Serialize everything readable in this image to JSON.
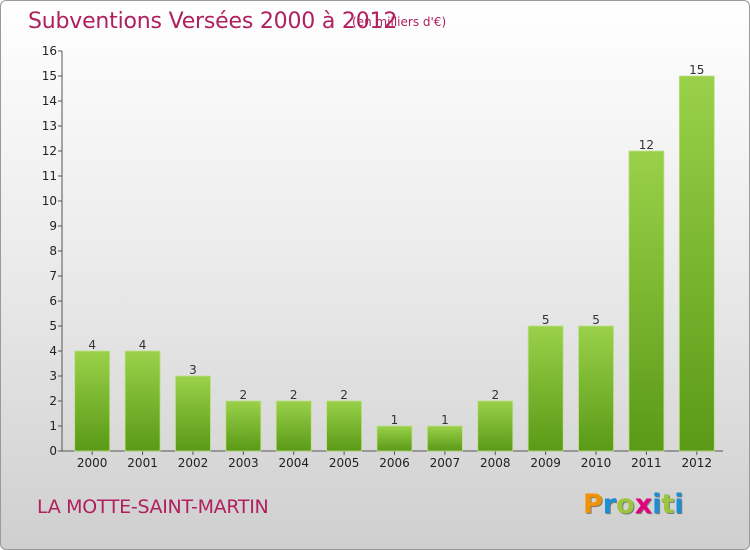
{
  "title": "Subventions Versées 2000 à 2012",
  "subtitle": "(en milliers d'€)",
  "commune": "LA MOTTE-SAINT-MARTIN",
  "brand": {
    "letters": [
      "P",
      "r",
      "o",
      "x",
      "i",
      "t",
      "i"
    ],
    "colors": [
      "#f39200",
      "#1a8fd6",
      "#9bc53d",
      "#e5007d",
      "#1a8fd6",
      "#9bc53d",
      "#1a8fd6"
    ]
  },
  "colors": {
    "title": "#b0205f",
    "bar_top": "#9ad14a",
    "bar_bottom": "#5a9a16"
  },
  "chart_data": {
    "type": "bar",
    "categories": [
      "2000",
      "2001",
      "2002",
      "2003",
      "2004",
      "2005",
      "2006",
      "2007",
      "2008",
      "2009",
      "2010",
      "2011",
      "2012"
    ],
    "values": [
      4,
      4,
      3,
      2,
      2,
      2,
      1,
      1,
      2,
      5,
      5,
      12,
      15
    ],
    "ylim": [
      0,
      16
    ],
    "yticks": [
      0,
      1,
      2,
      3,
      4,
      5,
      6,
      7,
      8,
      9,
      10,
      11,
      12,
      13,
      14,
      15,
      16
    ],
    "grid": false,
    "title": "Subventions Versées 2000 à 2012",
    "xlabel": "",
    "ylabel": ""
  }
}
